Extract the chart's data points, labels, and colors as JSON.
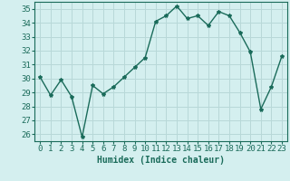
{
  "x": [
    0,
    1,
    2,
    3,
    4,
    5,
    6,
    7,
    8,
    9,
    10,
    11,
    12,
    13,
    14,
    15,
    16,
    17,
    18,
    19,
    20,
    21,
    22,
    23
  ],
  "y": [
    30.1,
    28.8,
    29.9,
    28.7,
    25.8,
    29.5,
    28.9,
    29.4,
    30.1,
    30.8,
    31.5,
    34.1,
    34.5,
    35.2,
    34.3,
    34.5,
    33.8,
    34.8,
    34.5,
    33.3,
    31.9,
    27.8,
    29.4,
    31.6
  ],
  "line_color": "#1a6b5a",
  "marker": "*",
  "marker_size": 3,
  "bg_color": "#d4efef",
  "grid_color": "#b8d8d8",
  "xlabel": "Humidex (Indice chaleur)",
  "ylim": [
    25.5,
    35.5
  ],
  "xlim": [
    -0.5,
    23.5
  ],
  "yticks": [
    26,
    27,
    28,
    29,
    30,
    31,
    32,
    33,
    34,
    35
  ],
  "xticks": [
    0,
    1,
    2,
    3,
    4,
    5,
    6,
    7,
    8,
    9,
    10,
    11,
    12,
    13,
    14,
    15,
    16,
    17,
    18,
    19,
    20,
    21,
    22,
    23
  ],
  "xlabel_fontsize": 7,
  "tick_fontsize": 6.5,
  "line_width": 1.0
}
